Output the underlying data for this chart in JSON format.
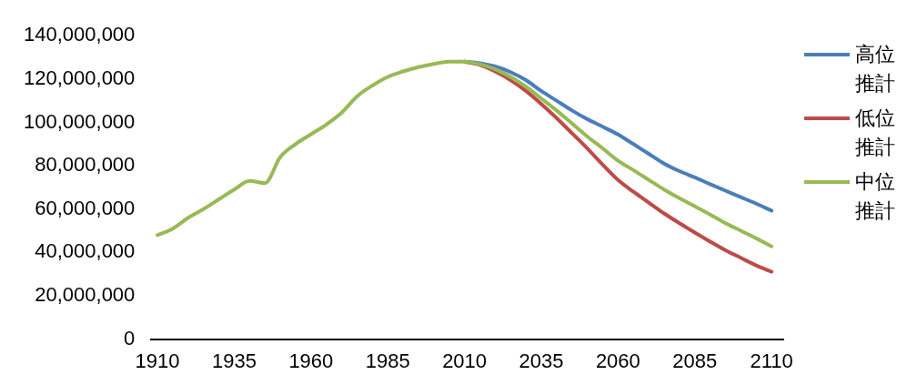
{
  "chart_data": {
    "type": "line",
    "x": [
      1910,
      1915,
      1920,
      1925,
      1930,
      1935,
      1940,
      1945,
      1950,
      1955,
      1960,
      1965,
      1970,
      1975,
      1980,
      1985,
      1990,
      1995,
      2000,
      2005,
      2010,
      2015,
      2020,
      2025,
      2030,
      2035,
      2040,
      2045,
      2050,
      2055,
      2060,
      2065,
      2070,
      2075,
      2080,
      2085,
      2090,
      2095,
      2100,
      2105,
      2110
    ],
    "xlim": [
      1908,
      2114
    ],
    "xticks": [
      1910,
      1935,
      1960,
      1985,
      2010,
      2035,
      2060,
      2085,
      2110
    ],
    "ylim": [
      0,
      140000000
    ],
    "yticks": [
      {
        "value": 0,
        "label": "0"
      },
      {
        "value": 20000000,
        "label": "20,000,000"
      },
      {
        "value": 40000000,
        "label": "40,000,000"
      },
      {
        "value": 60000000,
        "label": "60,000,000"
      },
      {
        "value": 80000000,
        "label": "80,000,000"
      },
      {
        "value": 100000000,
        "label": "100,000,000"
      },
      {
        "value": 120000000,
        "label": "120,000,000"
      },
      {
        "value": 140000000,
        "label": "140,000,000"
      }
    ],
    "grid": false,
    "legend": "right",
    "marker": "none",
    "line_style": "solid",
    "series": [
      {
        "name": "高位推計",
        "color": "#4a7ebb",
        "values": [
          null,
          null,
          null,
          null,
          null,
          null,
          null,
          null,
          null,
          null,
          null,
          null,
          null,
          null,
          null,
          null,
          null,
          null,
          null,
          null,
          128000000,
          127300000,
          125800000,
          123200000,
          119500000,
          114500000,
          110000000,
          105500000,
          101500000,
          98000000,
          94400000,
          90000000,
          85500000,
          81000000,
          77500000,
          74600000,
          71500000,
          68500000,
          65500000,
          62500000,
          59300000
        ]
      },
      {
        "name": "低位推計",
        "color": "#be4b48",
        "values": [
          null,
          null,
          null,
          null,
          null,
          null,
          null,
          null,
          null,
          null,
          null,
          null,
          null,
          null,
          null,
          null,
          null,
          null,
          null,
          null,
          128000000,
          126500000,
          123500000,
          119500000,
          114500000,
          108500000,
          102000000,
          95000000,
          88000000,
          80500000,
          73400000,
          68000000,
          63000000,
          58000000,
          53500000,
          49200000,
          45000000,
          41000000,
          37500000,
          34000000,
          31100000
        ]
      },
      {
        "name": "中位推計",
        "color": "#98b954",
        "values": [
          48000000,
          51000000,
          56000000,
          60000000,
          64500000,
          69000000,
          73000000,
          72000000,
          84000000,
          90000000,
          94500000,
          99000000,
          104500000,
          112000000,
          117000000,
          121000000,
          123500000,
          125500000,
          127000000,
          128000000,
          128000000,
          126800000,
          124500000,
          121000000,
          116500000,
          111000000,
          105500000,
          99500000,
          93500000,
          88000000,
          82300000,
          78000000,
          73500000,
          69000000,
          65000000,
          61300000,
          57500000,
          53500000,
          50000000,
          46500000,
          42800000
        ]
      }
    ]
  }
}
